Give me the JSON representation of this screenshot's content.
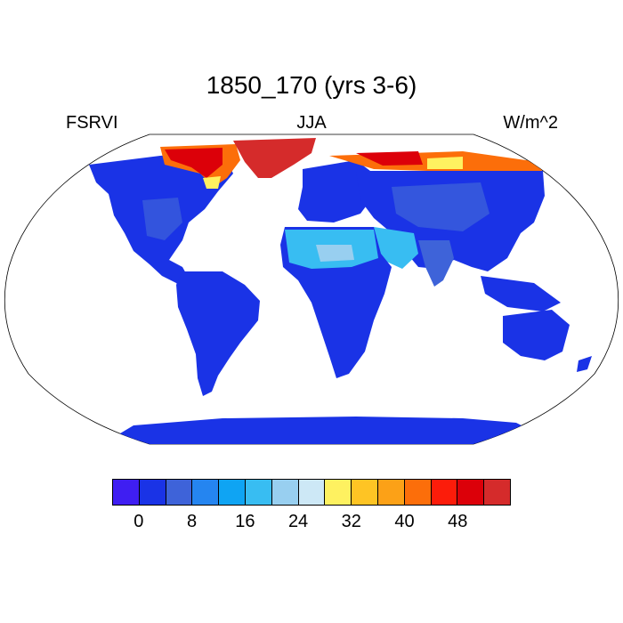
{
  "title": "1850_170 (yrs 3-6)",
  "left_label": "FSRVI",
  "center_label": "JJA",
  "right_label": "W/m^2",
  "colorbar": {
    "colors": [
      "#3f1ef2",
      "#1a33e6",
      "#3e63d9",
      "#2585f0",
      "#0fa4f3",
      "#38bdf2",
      "#98cff0",
      "#cde8f6",
      "#fef160",
      "#fec424",
      "#fca117",
      "#fc6e0a",
      "#fc1c0a",
      "#dc0009",
      "#d52b2b"
    ],
    "tick_labels": [
      "0",
      "8",
      "16",
      "24",
      "32",
      "40",
      "48"
    ]
  },
  "map": {
    "projection": "Robinson",
    "variable": "FSRVI",
    "season": "JJA",
    "units": "W/m^2",
    "description_colors": {
      "land_low": "#1a33e6",
      "land_mid": "#3e63d9",
      "desert": "#38bdf2",
      "desert_bright": "#98cff0",
      "ice_high": "#d52b2b",
      "ice_orange": "#fc6e0a",
      "ice_yellow": "#fef160"
    }
  }
}
